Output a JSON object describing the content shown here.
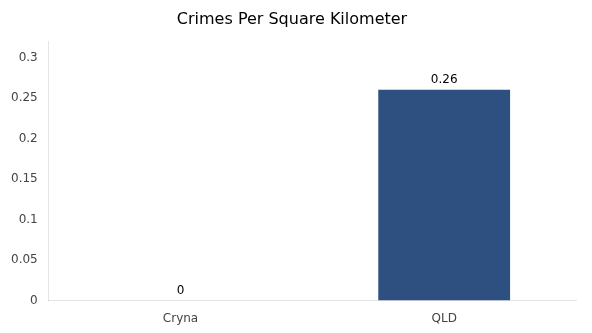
{
  "chart_data": {
    "type": "bar",
    "title": "Crimes Per Square Kilometer",
    "categories": [
      "Cryna",
      "QLD"
    ],
    "values": [
      0,
      0.26
    ],
    "colors": [
      "#4472a8",
      "#2e5080"
    ],
    "ylim": [
      0,
      0.32
    ],
    "yticks": [
      0,
      0.05,
      0.1,
      0.15,
      0.2,
      0.25,
      0.3
    ],
    "grid": false,
    "data_labels": true
  }
}
